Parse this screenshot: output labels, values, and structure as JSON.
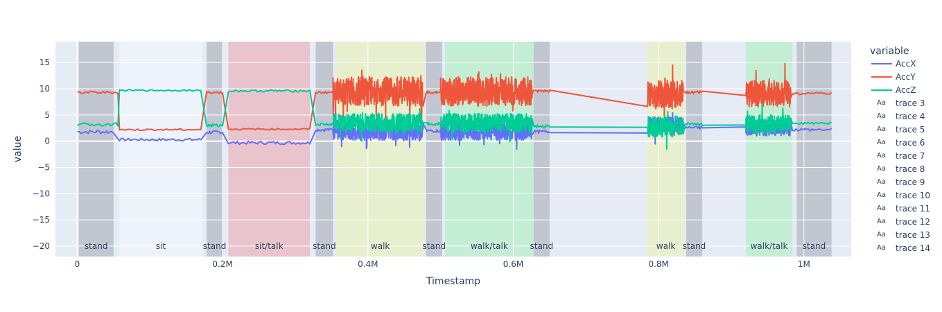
{
  "chart_data": {
    "type": "line",
    "xlabel": "Timestamp",
    "ylabel": "value",
    "xlim": [
      -30000,
      1065000
    ],
    "ylim": [
      -22,
      19
    ],
    "x_ticks": [
      {
        "v": 0,
        "label": "0"
      },
      {
        "v": 200000,
        "label": "0.2M"
      },
      {
        "v": 400000,
        "label": "0.4M"
      },
      {
        "v": 600000,
        "label": "0.6M"
      },
      {
        "v": 800000,
        "label": "0.8M"
      },
      {
        "v": 1000000,
        "label": "1M"
      }
    ],
    "y_ticks": [
      {
        "v": 15,
        "label": "15"
      },
      {
        "v": 10,
        "label": "10"
      },
      {
        "v": 5,
        "label": "5"
      },
      {
        "v": 0,
        "label": "0"
      },
      {
        "v": -5,
        "label": "−5"
      },
      {
        "v": -10,
        "label": "−10"
      },
      {
        "v": -15,
        "label": "−15"
      },
      {
        "v": -20,
        "label": "−20"
      }
    ],
    "activity_bands": [
      {
        "label": "stand",
        "x0": 2000,
        "x1": 50000,
        "color": "#b4bac4"
      },
      {
        "label": "sit",
        "x0": 58000,
        "x1": 172000,
        "color": "#f0f4fb"
      },
      {
        "label": "stand",
        "x0": 178000,
        "x1": 200000,
        "color": "#b4bac4"
      },
      {
        "label": "sit/talk",
        "x0": 208000,
        "x1": 320000,
        "color": "#eab7bd"
      },
      {
        "label": "stand",
        "x0": 328000,
        "x1": 352000,
        "color": "#b4bac4"
      },
      {
        "label": "walk",
        "x0": 356000,
        "x1": 478000,
        "color": "#e8f0c0"
      },
      {
        "label": "stand",
        "x0": 480000,
        "x1": 502000,
        "color": "#b4bac4"
      },
      {
        "label": "walk/talk",
        "x0": 506000,
        "x1": 628000,
        "color": "#b8efc8"
      },
      {
        "label": "stand",
        "x0": 628000,
        "x1": 650000,
        "color": "#b4bac4"
      },
      {
        "label": "walk",
        "x0": 784000,
        "x1": 836000,
        "color": "#e8f0c0"
      },
      {
        "label": "stand",
        "x0": 838000,
        "x1": 860000,
        "color": "#b4bac4"
      },
      {
        "label": "walk/talk",
        "x0": 920000,
        "x1": 984000,
        "color": "#b8efc8"
      },
      {
        "label": "stand",
        "x0": 990000,
        "x1": 1038000,
        "color": "#b4bac4"
      }
    ],
    "series": [
      {
        "name": "AccX",
        "color": "#636efa",
        "segments": [
          {
            "x0": 0,
            "x1": 50000,
            "level": 1.8,
            "noise": 0.4
          },
          {
            "x0": 58000,
            "x1": 170000,
            "level": 0.3,
            "noise": 0.25
          },
          {
            "x0": 178000,
            "x1": 200000,
            "level": 1.7,
            "noise": 0.3
          },
          {
            "x0": 208000,
            "x1": 320000,
            "level": -0.3,
            "noise": 0.3
          },
          {
            "x0": 328000,
            "x1": 352000,
            "level": 2.2,
            "noise": 0.3
          },
          {
            "x0": 352000,
            "x1": 476000,
            "level": 1.8,
            "noise": 1.6
          },
          {
            "x0": 480000,
            "x1": 500000,
            "level": 2.0,
            "noise": 0.3
          },
          {
            "x0": 500000,
            "x1": 626000,
            "level": 1.8,
            "noise": 1.6
          },
          {
            "x0": 628000,
            "x1": 650000,
            "level": 1.8,
            "noise": 0.3
          },
          {
            "x0": 785000,
            "x1": 834000,
            "level": 3.0,
            "noise": 1.6
          },
          {
            "x0": 836000,
            "x1": 860000,
            "level": 2.6,
            "noise": 0.3
          },
          {
            "x0": 920000,
            "x1": 982000,
            "level": 2.6,
            "noise": 1.6
          },
          {
            "x0": 984000,
            "x1": 1038000,
            "level": 2.2,
            "noise": 0.3
          }
        ]
      },
      {
        "name": "AccY",
        "color": "#ef553b",
        "segments": [
          {
            "x0": 0,
            "x1": 56000,
            "level": 9.3,
            "noise": 0.25
          },
          {
            "x0": 58000,
            "x1": 170000,
            "level": 2.2,
            "noise": 0.15
          },
          {
            "x0": 178000,
            "x1": 200000,
            "level": 9.3,
            "noise": 0.2
          },
          {
            "x0": 208000,
            "x1": 320000,
            "level": 2.3,
            "noise": 0.15
          },
          {
            "x0": 328000,
            "x1": 352000,
            "level": 9.3,
            "noise": 0.2
          },
          {
            "x0": 352000,
            "x1": 476000,
            "level": 9.5,
            "noise": 2.8
          },
          {
            "x0": 480000,
            "x1": 500000,
            "level": 9.3,
            "noise": 0.2
          },
          {
            "x0": 500000,
            "x1": 626000,
            "level": 9.5,
            "noise": 2.8
          },
          {
            "x0": 628000,
            "x1": 650000,
            "level": 9.5,
            "noise": 0.3
          },
          {
            "x0": 785000,
            "x1": 834000,
            "level": 9.0,
            "noise": 2.6
          },
          {
            "x0": 836000,
            "x1": 860000,
            "level": 9.3,
            "noise": 0.3
          },
          {
            "x0": 920000,
            "x1": 982000,
            "level": 9.0,
            "noise": 2.6
          },
          {
            "x0": 984000,
            "x1": 1038000,
            "level": 9.1,
            "noise": 0.2
          }
        ]
      },
      {
        "name": "AccZ",
        "color": "#00cc96",
        "segments": [
          {
            "x0": 0,
            "x1": 56000,
            "level": 3.2,
            "noise": 0.3
          },
          {
            "x0": 58000,
            "x1": 170000,
            "level": 9.7,
            "noise": 0.15
          },
          {
            "x0": 178000,
            "x1": 200000,
            "level": 3.0,
            "noise": 0.3
          },
          {
            "x0": 208000,
            "x1": 320000,
            "level": 9.6,
            "noise": 0.2
          },
          {
            "x0": 328000,
            "x1": 352000,
            "level": 3.2,
            "noise": 0.3
          },
          {
            "x0": 352000,
            "x1": 476000,
            "level": 3.5,
            "noise": 1.8
          },
          {
            "x0": 480000,
            "x1": 500000,
            "level": 3.3,
            "noise": 0.3
          },
          {
            "x0": 500000,
            "x1": 626000,
            "level": 3.5,
            "noise": 1.8
          },
          {
            "x0": 628000,
            "x1": 650000,
            "level": 2.8,
            "noise": 0.3
          },
          {
            "x0": 785000,
            "x1": 834000,
            "level": 2.8,
            "noise": 2.0
          },
          {
            "x0": 836000,
            "x1": 860000,
            "level": 3.3,
            "noise": 0.3
          },
          {
            "x0": 920000,
            "x1": 982000,
            "level": 3.2,
            "noise": 1.8
          },
          {
            "x0": 984000,
            "x1": 1038000,
            "level": 3.4,
            "noise": 0.2
          }
        ]
      }
    ],
    "legend": {
      "title": "variable",
      "placement": "right",
      "line_items": [
        "AccX",
        "AccY",
        "AccZ"
      ],
      "text_items": [
        "trace 3",
        "trace 4",
        "trace 5",
        "trace 6",
        "trace 7",
        "trace 8",
        "trace 9",
        "trace 10",
        "trace 11",
        "trace 12",
        "trace 13",
        "trace 14"
      ],
      "text_marker": "Aa"
    },
    "plot_bg": "#e5ecf6",
    "grid": true
  }
}
